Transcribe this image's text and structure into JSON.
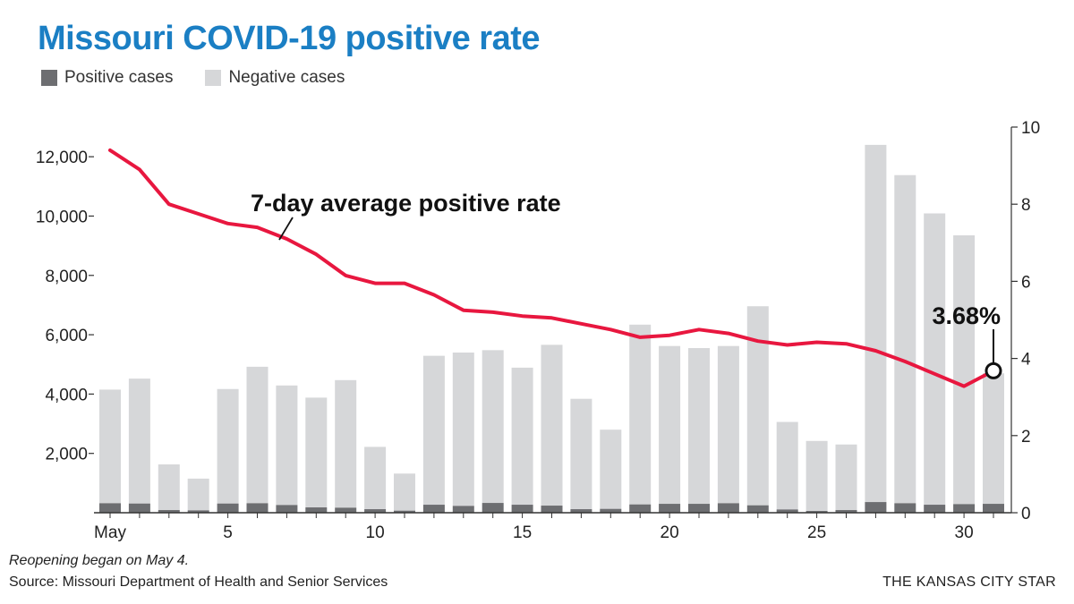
{
  "title": "Missouri COVID-19 positive rate",
  "legend": {
    "positive_label": "Positive cases",
    "negative_label": "Negative cases",
    "positive_color": "#6d6e71",
    "negative_color": "#d6d7d9"
  },
  "line_label": "7-day average positive rate",
  "line_color": "#e8173f",
  "end_label": "3.68%",
  "note": "Reopening began on May 4.",
  "source": "Source: Missouri Department of Health and Senior Services",
  "credit": "THE KANSAS CITY STAR",
  "chart_data": {
    "type": "bar",
    "x": [
      1,
      2,
      3,
      4,
      5,
      6,
      7,
      8,
      9,
      10,
      11,
      12,
      13,
      14,
      15,
      16,
      17,
      18,
      19,
      20,
      21,
      22,
      23,
      24,
      25,
      26,
      27,
      28,
      29,
      30,
      31
    ],
    "x_tick_labels": [
      {
        "x": 1,
        "label": "May"
      },
      {
        "x": 5,
        "label": "5"
      },
      {
        "x": 10,
        "label": "10"
      },
      {
        "x": 15,
        "label": "15"
      },
      {
        "x": 20,
        "label": "20"
      },
      {
        "x": 25,
        "label": "25"
      },
      {
        "x": 30,
        "label": "30"
      }
    ],
    "stacked": true,
    "series": [
      {
        "name": "Positive cases",
        "values": [
          320,
          310,
          90,
          80,
          310,
          320,
          260,
          180,
          170,
          120,
          70,
          270,
          230,
          330,
          270,
          240,
          120,
          130,
          280,
          300,
          300,
          320,
          250,
          110,
          60,
          90,
          360,
          320,
          270,
          290,
          300
        ]
      },
      {
        "name": "Negative cases",
        "values": [
          3830,
          4210,
          1540,
          1070,
          3860,
          4600,
          4030,
          3700,
          4300,
          2100,
          1250,
          5020,
          5170,
          5150,
          4620,
          5420,
          3720,
          2670,
          6060,
          5320,
          5250,
          5300,
          6710,
          2950,
          2360,
          2210,
          12040,
          11060,
          9820,
          9060,
          4400
        ]
      }
    ],
    "line": {
      "name": "7-day average positive rate",
      "axis": "right",
      "values": [
        9.4,
        8.9,
        8.0,
        7.75,
        7.5,
        7.4,
        7.1,
        6.7,
        6.15,
        5.95,
        5.95,
        5.65,
        5.25,
        5.2,
        5.1,
        5.05,
        4.9,
        4.75,
        4.55,
        4.6,
        4.75,
        4.65,
        4.45,
        4.35,
        4.42,
        4.38,
        4.2,
        3.92,
        3.6,
        3.28,
        3.68
      ]
    },
    "y_left": {
      "ylim": [
        0,
        13000
      ],
      "ticks": [
        2000,
        4000,
        6000,
        8000,
        10000,
        12000
      ],
      "tick_labels": [
        "2,000",
        "4,000",
        "6,000",
        "8,000",
        "10,000",
        "12,000"
      ]
    },
    "y_right": {
      "ylim": [
        0,
        10
      ],
      "ticks": [
        0,
        2,
        4,
        6,
        8,
        10
      ],
      "tick_labels": [
        "0",
        "2",
        "4",
        "6",
        "8",
        "10"
      ]
    },
    "grid": false
  }
}
